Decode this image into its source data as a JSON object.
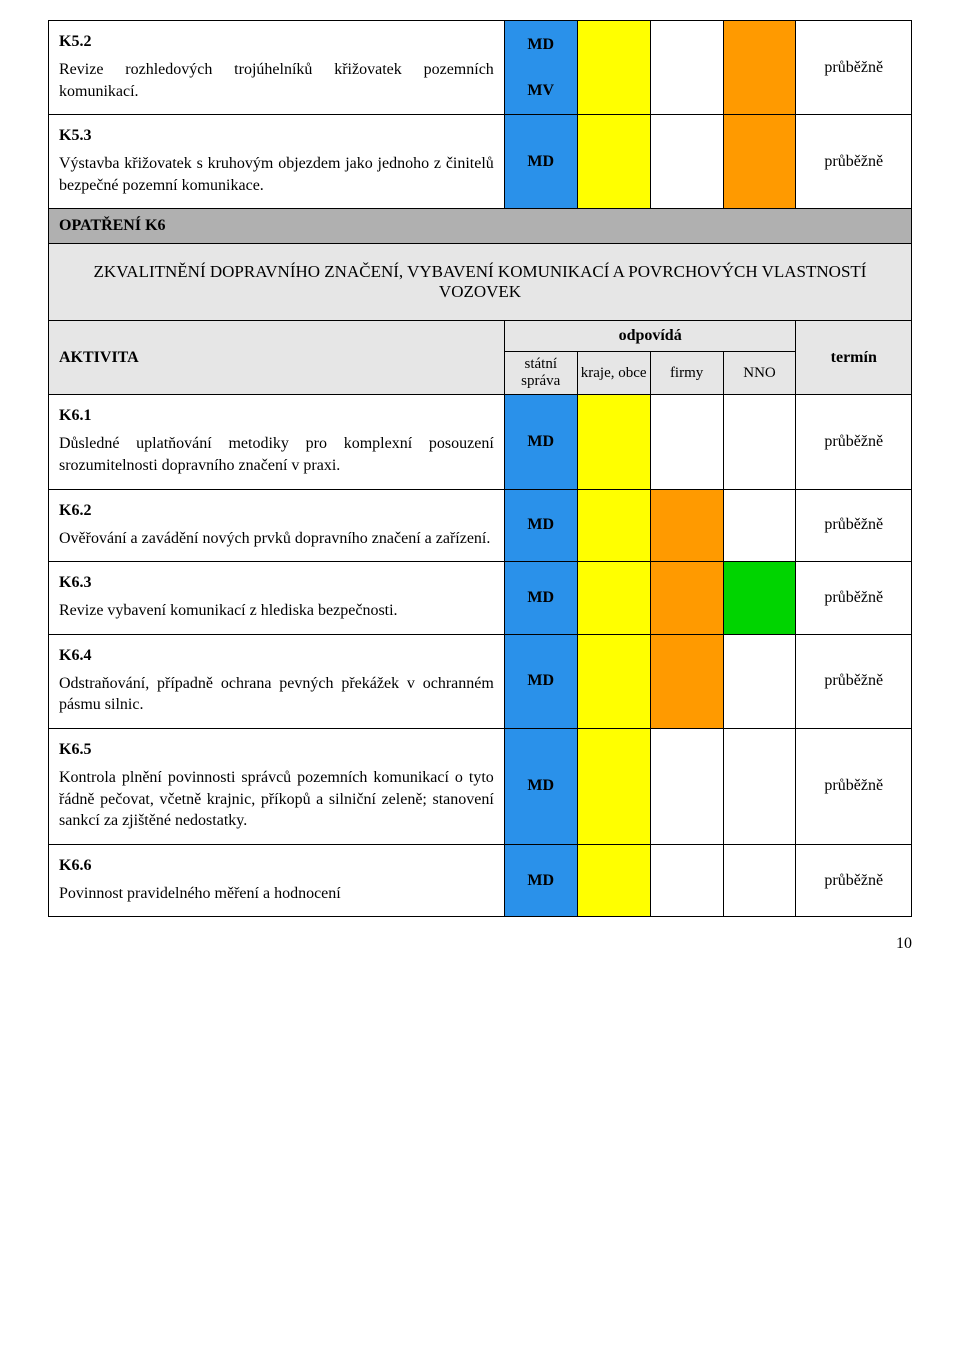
{
  "colors": {
    "blue": "#2a91ea",
    "yellow": "#ffff00",
    "orange": "#ff9a00",
    "green": "#00d400",
    "white": "#ffffff",
    "section_header_bg": "#b0b0b0",
    "section_sub_bg": "#e6e6e6"
  },
  "labels": {
    "md": "MD",
    "mv": "MV"
  },
  "header": {
    "activity": "AKTIVITA",
    "odpovida": "odpovídá",
    "statni_sprava": "státní správa",
    "kraje_obce": "kraje, obce",
    "firmy": "firmy",
    "nno": "NNO",
    "termin": "termín"
  },
  "rows_top": {
    "k52": {
      "id": "K5.2",
      "text": "Revize rozhledových trojúhelníků křižovatek pozemních komunikací.",
      "state_labels": [
        "MD",
        "MV"
      ],
      "colors": [
        "blue",
        "yellow",
        "white",
        "orange"
      ],
      "term": "průběžně"
    },
    "k53": {
      "id": "K5.3",
      "text": "Výstavba křižovatek s kruhovým objezdem jako jednoho z činitelů bezpečné pozemní komunikace.",
      "state_labels": [
        "MD"
      ],
      "colors": [
        "blue",
        "yellow",
        "white",
        "orange"
      ],
      "term": "průběžně"
    }
  },
  "section_k6": {
    "title": "OPATŘENÍ K6",
    "subtitle": "ZKVALITNĚNÍ DOPRAVNÍHO ZNAČENÍ, VYBAVENÍ KOMUNIKACÍ A POVRCHOVÝCH VLASTNOSTÍ VOZOVEK"
  },
  "rows_k6": {
    "k61": {
      "id": "K6.1",
      "text": "Důsledné uplatňování metodiky pro komplexní posouzení srozumitelnosti dopravního značení v praxi.",
      "state_labels": [
        "MD"
      ],
      "colors": [
        "blue",
        "yellow",
        "white",
        "white"
      ],
      "term": "průběžně"
    },
    "k62": {
      "id": "K6.2",
      "text": "Ověřování a zavádění nových prvků dopravního značení a zařízení.",
      "state_labels": [
        "MD"
      ],
      "colors": [
        "blue",
        "yellow",
        "orange",
        "white"
      ],
      "term": "průběžně"
    },
    "k63": {
      "id": "K6.3",
      "text": "Revize vybavení komunikací z hlediska bezpečnosti.",
      "state_labels": [
        "MD"
      ],
      "colors": [
        "blue",
        "yellow",
        "orange",
        "green"
      ],
      "term": "průběžně"
    },
    "k64": {
      "id": "K6.4",
      "text": "Odstraňování, případně ochrana pevných překážek v ochranném pásmu silnic.",
      "state_labels": [
        "MD"
      ],
      "colors": [
        "blue",
        "yellow",
        "orange",
        "white"
      ],
      "term": "průběžně"
    },
    "k65": {
      "id": "K6.5",
      "text": "Kontrola plnění povinnosti správců pozemních komunikací o tyto řádně pečovat, včetně krajnic, příkopů a silniční zeleně; stanovení sankcí za zjištěné nedostatky.",
      "state_labels": [
        "MD"
      ],
      "colors": [
        "blue",
        "yellow",
        "white",
        "white"
      ],
      "term": "průběžně"
    },
    "k66": {
      "id": "K6.6",
      "text": "Povinnost   pravidelného   měření   a   hodnocení",
      "state_labels": [
        "MD"
      ],
      "colors": [
        "blue",
        "yellow",
        "white",
        "white"
      ],
      "term": "průběžně"
    }
  },
  "page_number": "10"
}
